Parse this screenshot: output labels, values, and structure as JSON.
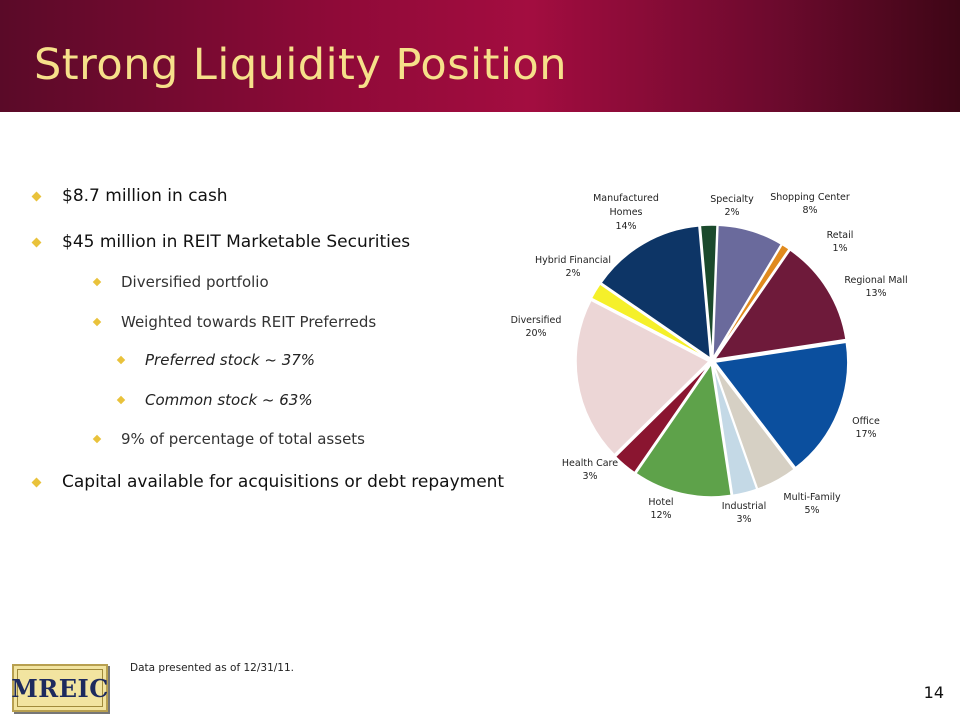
{
  "slide": {
    "title": "Strong Liquidity Position",
    "page_number": "14",
    "footnote": "Data presented as of 12/31/11.",
    "logo_text": "MREIC"
  },
  "bullets": [
    {
      "level": 1,
      "text": "$8.7 million in cash"
    },
    {
      "level": 1,
      "text": "$45 million in REIT Marketable Securities"
    },
    {
      "level": 2,
      "text": "Diversified portfolio"
    },
    {
      "level": 2,
      "text": "Weighted towards REIT Preferreds"
    },
    {
      "level": 3,
      "text": "Preferred stock ~ 37%"
    },
    {
      "level": 3,
      "text": "Common stock ~ 63%"
    },
    {
      "level": 2,
      "text": "9% of percentage of total assets"
    },
    {
      "level": 1,
      "text": "Capital available for acquisitions or debt repayment"
    }
  ],
  "chart_data": {
    "type": "pie",
    "title": "",
    "slices": [
      {
        "label": "Specialty",
        "value": 2,
        "value_label": "2%",
        "color": "#1b4a2c"
      },
      {
        "label": "Shopping Center",
        "value": 8,
        "value_label": "8%",
        "color": "#6a6a9c"
      },
      {
        "label": "Retail",
        "value": 1,
        "value_label": "1%",
        "color": "#e08a1e"
      },
      {
        "label": "Regional Mall",
        "value": 13,
        "value_label": "13%",
        "color": "#6e1a3a"
      },
      {
        "label": "Office",
        "value": 17,
        "value_label": "17%",
        "color": "#0b4f9e"
      },
      {
        "label": "Multi-Family",
        "value": 5,
        "value_label": "5%",
        "color": "#d6d0c4"
      },
      {
        "label": "Industrial",
        "value": 3,
        "value_label": "3%",
        "color": "#c4d9e6"
      },
      {
        "label": "Hotel",
        "value": 12,
        "value_label": "12%",
        "color": "#5ea24a"
      },
      {
        "label": "Health Care",
        "value": 3,
        "value_label": "3%",
        "color": "#8a1530"
      },
      {
        "label": "Diversified",
        "value": 20,
        "value_label": "20%",
        "color": "#ecd6d6"
      },
      {
        "label": "Hybrid Financial",
        "value": 2,
        "value_label": "2%",
        "color": "#f5f02a"
      },
      {
        "label": "Manufactured Homes",
        "value": 14,
        "value_label": "14%",
        "color": "#0d3566"
      }
    ]
  }
}
